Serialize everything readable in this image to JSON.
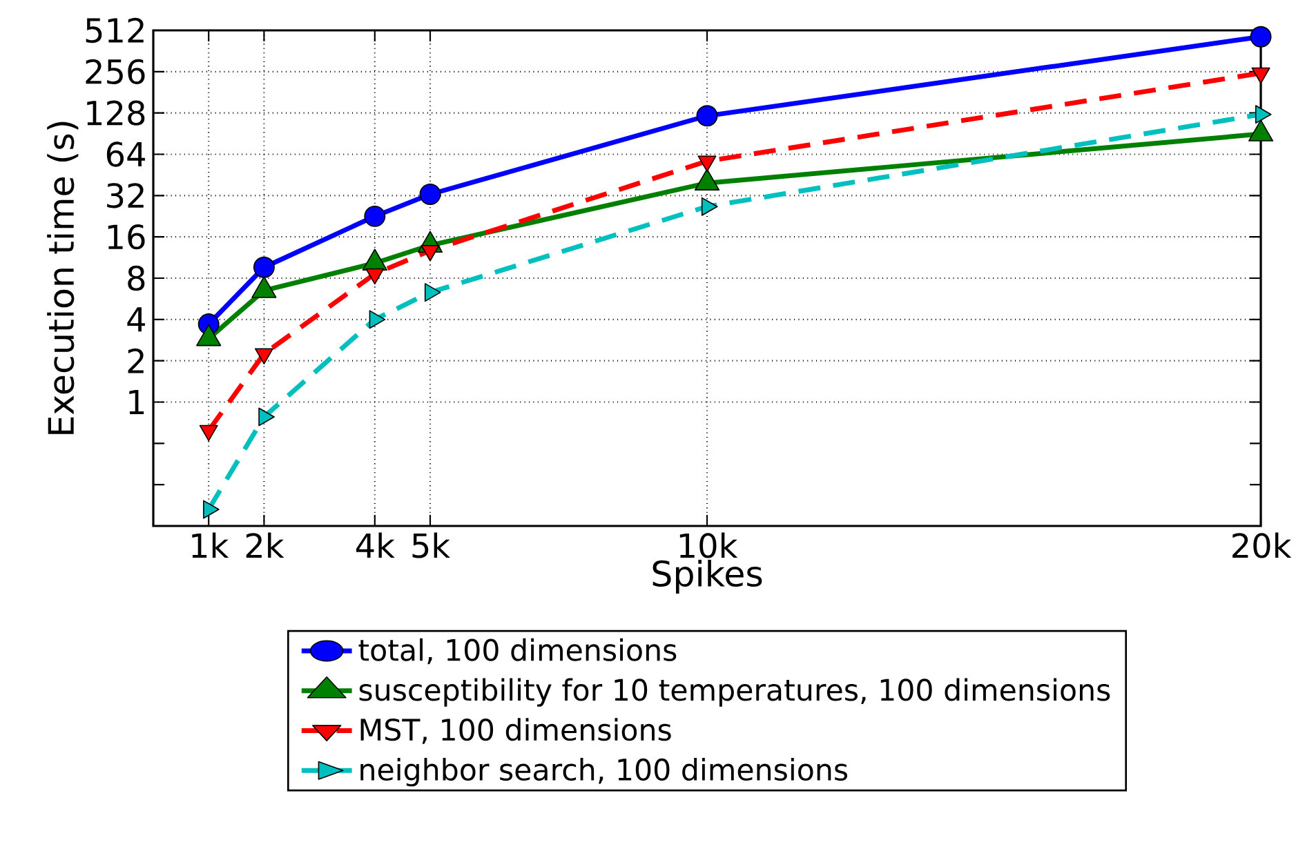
{
  "chart_data": {
    "type": "line",
    "xlabel": "Spikes",
    "ylabel": "Execution time (s)",
    "log": "y",
    "grid": true,
    "legend": "bottom",
    "x": [
      1000,
      2000,
      4000,
      5000,
      10000,
      20000
    ],
    "xlim": [
      0,
      20000
    ],
    "xticks": [
      {
        "value": 1000,
        "label": "1k"
      },
      {
        "value": 2000,
        "label": "2k"
      },
      {
        "value": 4000,
        "label": "4k"
      },
      {
        "value": 5000,
        "label": "5k"
      },
      {
        "value": 10000,
        "label": "10k"
      },
      {
        "value": 20000,
        "label": "20k"
      }
    ],
    "ylim": [
      0.125,
      512
    ],
    "yticks": [
      {
        "value": 0.25,
        "label": null
      },
      {
        "value": 0.5,
        "label": null
      },
      1,
      2,
      4,
      8,
      16,
      32,
      64,
      128,
      256,
      512
    ],
    "series": [
      {
        "name": "total, 100 dimensions",
        "color": "#0000ff",
        "marker": "circle",
        "line_style": "solid",
        "values": [
          3.7,
          9.6,
          22.6,
          32.7,
          122,
          460
        ]
      },
      {
        "name": "susceptibility for 10 temperatures, 100 dimensions",
        "color": "#008000",
        "marker": "triangle",
        "line_style": "solid",
        "values": [
          2.9,
          6.5,
          10.3,
          13.9,
          39.5,
          90
        ]
      },
      {
        "name": "MST, 100 dimensions",
        "color": "#ff0000",
        "marker": "triangle",
        "line_style": "dashed",
        "values": [
          0.62,
          2.25,
          8.6,
          12.7,
          57,
          250
        ]
      },
      {
        "name": "neighbor search, 100 dimensions",
        "color": "#00bfbf",
        "marker": "triangle",
        "line_style": "dashed",
        "values": [
          0.165,
          0.78,
          4,
          6.3,
          26.6,
          125
        ]
      }
    ]
  }
}
